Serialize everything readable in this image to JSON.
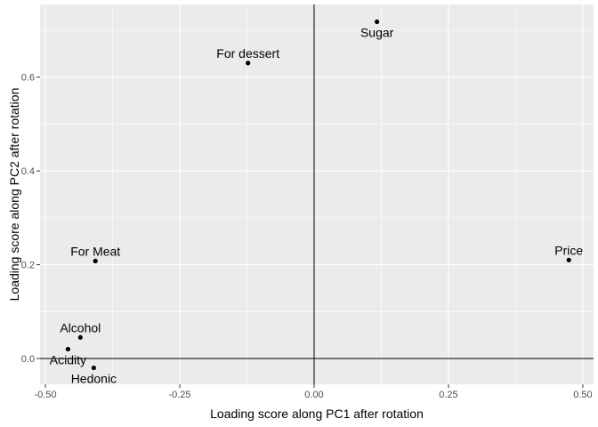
{
  "chart_data": {
    "type": "scatter",
    "title": "",
    "xlabel": "Loading score along PC1 after rotation",
    "ylabel": "Loading score along PC2 after rotation",
    "xlim": [
      -0.51,
      0.52
    ],
    "ylim": [
      -0.055,
      0.755
    ],
    "x_ticks": [
      -0.5,
      -0.25,
      0.0,
      0.25,
      0.5
    ],
    "x_tick_labels": [
      "-0.50",
      "-0.25",
      "0.00",
      "0.25",
      "0.50"
    ],
    "y_ticks": [
      0.0,
      0.2,
      0.4,
      0.6
    ],
    "y_tick_labels": [
      "0.0",
      "0.2",
      "0.4",
      "0.6"
    ],
    "grid": true,
    "reference_lines": {
      "x": 0,
      "y": 0
    },
    "colors": {
      "panel": "#ebebeb",
      "grid": "#ffffff",
      "point": "#000000",
      "reference": "#000000"
    },
    "points": [
      {
        "label": "Sugar",
        "x": 0.117,
        "y": 0.718,
        "label_pos": "below"
      },
      {
        "label": "For dessert",
        "x": -0.123,
        "y": 0.63,
        "label_pos": "above"
      },
      {
        "label": "Price",
        "x": 0.474,
        "y": 0.21,
        "label_pos": "above"
      },
      {
        "label": "For Meat",
        "x": -0.407,
        "y": 0.208,
        "label_pos": "above"
      },
      {
        "label": "Alcohol",
        "x": -0.435,
        "y": 0.045,
        "label_pos": "above"
      },
      {
        "label": "Acidity",
        "x": -0.458,
        "y": 0.02,
        "label_pos": "below"
      },
      {
        "label": "Hedonic",
        "x": -0.41,
        "y": -0.02,
        "label_pos": "below"
      }
    ]
  }
}
